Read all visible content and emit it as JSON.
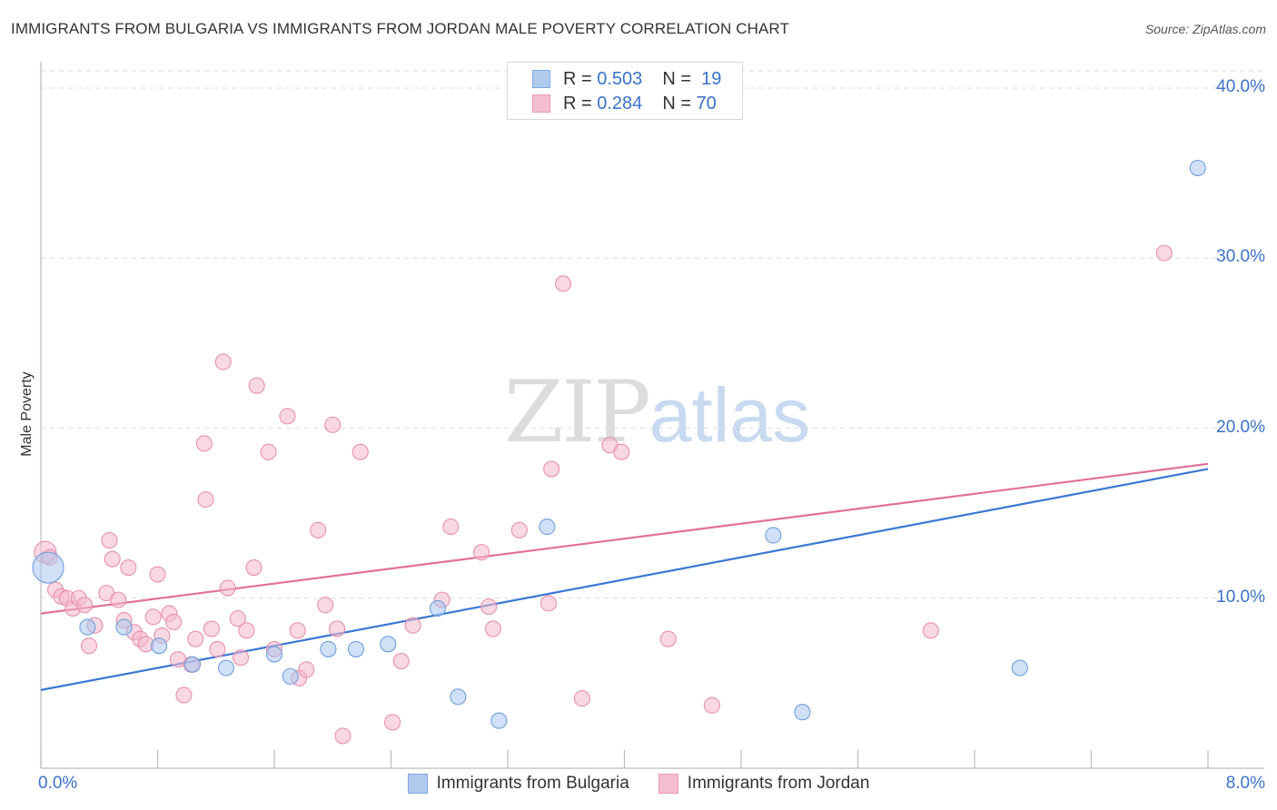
{
  "title": "IMMIGRANTS FROM BULGARIA VS IMMIGRANTS FROM JORDAN MALE POVERTY CORRELATION CHART",
  "source": "Source: ZipAtlas.com",
  "watermark": {
    "zip": "ZIP",
    "atlas": "atlas"
  },
  "stats": [
    {
      "r_label": "R =",
      "r_value": "0.503",
      "n_label": "N =",
      "n_value": "19",
      "color": "#a9c6ee"
    },
    {
      "r_label": "R =",
      "r_value": "0.284",
      "n_label": "N =",
      "n_value": "70",
      "color": "#f4b8cc"
    }
  ],
  "legend": [
    {
      "label": "Immigrants from Bulgaria",
      "color": "#a9c6ee"
    },
    {
      "label": "Immigrants from Jordan",
      "color": "#f4b8cc"
    }
  ],
  "x_tick_labels": {
    "left": "0.0%",
    "right": "8.0%"
  },
  "y_tick_labels": [
    "10.0%",
    "20.0%",
    "30.0%",
    "40.0%"
  ],
  "chart_data": {
    "type": "scatter",
    "title": "IMMIGRANTS FROM BULGARIA VS IMMIGRANTS FROM JORDAN MALE POVERTY CORRELATION CHART",
    "xlabel": "",
    "ylabel": "Male Poverty",
    "xlim": [
      0,
      8
    ],
    "ylim": [
      0,
      42
    ],
    "y_ticks": [
      10,
      20,
      30,
      40
    ],
    "grid": true,
    "series": [
      {
        "name": "Immigrants from Bulgaria",
        "color": "#a9c6ee",
        "edge": "#6f9fdc",
        "trend_color": "#3a78d4",
        "trend": {
          "x": [
            0,
            8
          ],
          "y": [
            4.6,
            17.6
          ]
        },
        "points": [
          [
            0.05,
            11.8
          ],
          [
            0.32,
            8.3
          ],
          [
            0.57,
            8.3
          ],
          [
            0.81,
            7.2
          ],
          [
            1.04,
            6.1
          ],
          [
            1.27,
            5.9
          ],
          [
            1.6,
            6.7
          ],
          [
            1.71,
            5.4
          ],
          [
            1.97,
            7.0
          ],
          [
            2.16,
            7.0
          ],
          [
            2.38,
            7.3
          ],
          [
            2.72,
            9.4
          ],
          [
            2.86,
            4.2
          ],
          [
            3.14,
            2.8
          ],
          [
            3.47,
            14.2
          ],
          [
            5.02,
            13.7
          ],
          [
            6.71,
            5.9
          ],
          [
            5.22,
            3.3
          ],
          [
            7.93,
            35.3
          ]
        ]
      },
      {
        "name": "Immigrants from Jordan",
        "color": "#f4b8cc",
        "edge": "#e890ae",
        "trend_color": "#e0719a",
        "trend": {
          "x": [
            0,
            8
          ],
          "y": [
            9.1,
            17.9
          ]
        },
        "points": [
          [
            0.03,
            12.7
          ],
          [
            0.06,
            12.4
          ],
          [
            0.1,
            10.5
          ],
          [
            0.14,
            10.1
          ],
          [
            0.18,
            10.0
          ],
          [
            0.22,
            9.4
          ],
          [
            0.26,
            10.0
          ],
          [
            0.3,
            9.6
          ],
          [
            0.33,
            7.2
          ],
          [
            0.37,
            8.4
          ],
          [
            0.45,
            10.3
          ],
          [
            0.47,
            13.4
          ],
          [
            0.49,
            12.3
          ],
          [
            0.53,
            9.9
          ],
          [
            0.57,
            8.7
          ],
          [
            0.6,
            11.8
          ],
          [
            0.64,
            8.0
          ],
          [
            0.68,
            7.6
          ],
          [
            0.72,
            7.3
          ],
          [
            0.77,
            8.9
          ],
          [
            0.8,
            11.4
          ],
          [
            0.83,
            7.8
          ],
          [
            0.88,
            9.1
          ],
          [
            0.91,
            8.6
          ],
          [
            0.94,
            6.4
          ],
          [
            0.98,
            4.3
          ],
          [
            1.03,
            6.1
          ],
          [
            1.06,
            7.6
          ],
          [
            1.12,
            19.1
          ],
          [
            1.13,
            15.8
          ],
          [
            1.17,
            8.2
          ],
          [
            1.21,
            7.0
          ],
          [
            1.25,
            23.9
          ],
          [
            1.28,
            10.6
          ],
          [
            1.35,
            8.8
          ],
          [
            1.37,
            6.5
          ],
          [
            1.41,
            8.1
          ],
          [
            1.46,
            11.8
          ],
          [
            1.48,
            22.5
          ],
          [
            1.56,
            18.6
          ],
          [
            1.6,
            7.0
          ],
          [
            1.69,
            20.7
          ],
          [
            1.77,
            5.3
          ],
          [
            1.82,
            5.8
          ],
          [
            1.76,
            8.1
          ],
          [
            1.9,
            14.0
          ],
          [
            1.95,
            9.6
          ],
          [
            2.0,
            20.2
          ],
          [
            2.03,
            8.2
          ],
          [
            2.07,
            1.9
          ],
          [
            2.19,
            18.6
          ],
          [
            2.41,
            2.7
          ],
          [
            2.47,
            6.3
          ],
          [
            2.55,
            8.4
          ],
          [
            2.75,
            9.9
          ],
          [
            2.81,
            14.2
          ],
          [
            3.02,
            12.7
          ],
          [
            3.07,
            9.5
          ],
          [
            3.1,
            8.2
          ],
          [
            3.28,
            14.0
          ],
          [
            3.48,
            9.7
          ],
          [
            3.5,
            17.6
          ],
          [
            3.58,
            28.5
          ],
          [
            3.71,
            4.1
          ],
          [
            3.9,
            19.0
          ],
          [
            3.98,
            18.6
          ],
          [
            4.3,
            7.6
          ],
          [
            4.6,
            3.7
          ],
          [
            6.1,
            8.1
          ],
          [
            7.7,
            30.3
          ]
        ]
      }
    ]
  }
}
